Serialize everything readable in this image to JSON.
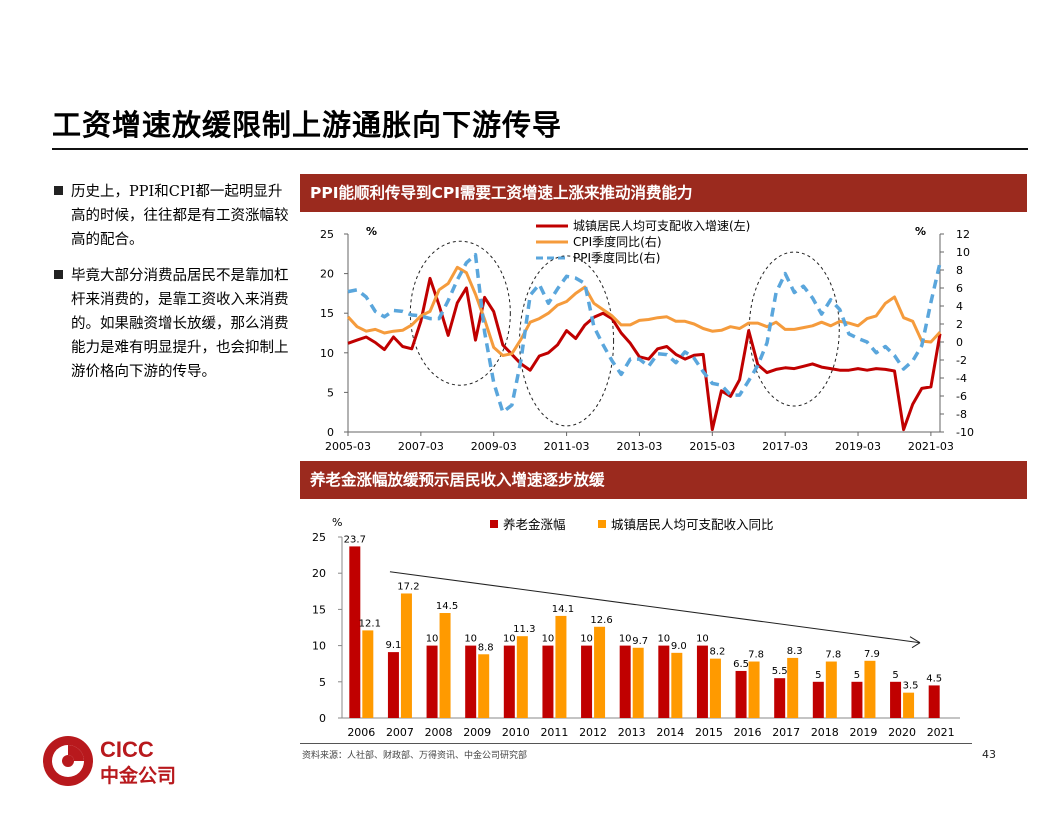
{
  "slide": {
    "title": "工资增速放缓限制上游通胀向下游传导",
    "bullets": [
      "历史上，PPI和CPI都一起明显升高的时候，往往都是有工资涨幅较高的配合。",
      "毕竟大部分消费品居民不是靠加杠杆来消费的，是靠工资收入来消费的。如果融资增长放缓，那么消费能力是难有明显提升，也会抑制上游价格向下游的传导。"
    ],
    "source": "资料来源：人社部、财政部、万得资讯、中金公司研究部",
    "page_number": "43",
    "logo_text_top": "CICC",
    "logo_text_bottom": "中金公司"
  },
  "colors": {
    "banner": "#9b2a1e",
    "income": "#c00000",
    "cpi": "#f59b3c",
    "ppi": "#5aa6dc",
    "pension_bar": "#c00000",
    "income_bar": "#ff9a00"
  },
  "chart_data": [
    {
      "type": "line",
      "title": "PPI能顺利传导到CPI需要工资增速上涨来推动消费能力",
      "left_unit": "%",
      "right_unit": "%",
      "ylim_left": [
        0,
        25
      ],
      "ylim_right": [
        -10,
        12
      ],
      "left_ticks": [
        "0",
        "5",
        "10",
        "15",
        "20",
        "25"
      ],
      "right_ticks": [
        "-10",
        "-8",
        "-6",
        "-4",
        "-2",
        "0",
        "2",
        "4",
        "6",
        "8",
        "10",
        "12"
      ],
      "x_ticks": [
        "2005-03",
        "2007-03",
        "2009-03",
        "2011-03",
        "2013-03",
        "2015-03",
        "2017-03",
        "2019-03",
        "2021-03"
      ],
      "x_start": "2005-03",
      "x_end": "2021-06",
      "grid": false,
      "legend_position": "top-center",
      "annotations": [
        "dashed ellipse 2007-2009",
        "dashed ellipse 2009-2012",
        "dashed ellipse 2016-2018"
      ],
      "series": [
        {
          "name": "城镇居民人均可支配收入增速(左)",
          "axis": "left",
          "style": "solid",
          "points": [
            [
              "2005-03",
              11.2
            ],
            [
              "2005-06",
              11.6
            ],
            [
              "2005-09",
              12.0
            ],
            [
              "2005-12",
              11.3
            ],
            [
              "2006-03",
              10.4
            ],
            [
              "2006-06",
              12.0
            ],
            [
              "2006-09",
              10.8
            ],
            [
              "2006-12",
              10.5
            ],
            [
              "2007-03",
              14.0
            ],
            [
              "2007-06",
              19.4
            ],
            [
              "2007-09",
              16.0
            ],
            [
              "2007-12",
              12.2
            ],
            [
              "2008-03",
              16.3
            ],
            [
              "2008-06",
              18.2
            ],
            [
              "2008-09",
              11.6
            ],
            [
              "2008-12",
              17.0
            ],
            [
              "2009-03",
              15.2
            ],
            [
              "2009-06",
              11.0
            ],
            [
              "2009-09",
              9.8
            ],
            [
              "2009-12",
              8.6
            ],
            [
              "2010-03",
              7.8
            ],
            [
              "2010-06",
              9.6
            ],
            [
              "2010-09",
              10.0
            ],
            [
              "2010-12",
              11.0
            ],
            [
              "2011-03",
              12.8
            ],
            [
              "2011-06",
              11.8
            ],
            [
              "2011-09",
              13.5
            ],
            [
              "2011-12",
              14.5
            ],
            [
              "2012-03",
              15.0
            ],
            [
              "2012-06",
              14.3
            ],
            [
              "2012-09",
              12.5
            ],
            [
              "2012-12",
              11.2
            ],
            [
              "2013-03",
              9.5
            ],
            [
              "2013-06",
              9.2
            ],
            [
              "2013-09",
              10.5
            ],
            [
              "2013-12",
              10.8
            ],
            [
              "2014-03",
              9.8
            ],
            [
              "2014-06",
              9.2
            ],
            [
              "2014-09",
              9.7
            ],
            [
              "2014-12",
              9.8
            ],
            [
              "2015-03",
              0.3
            ],
            [
              "2015-06",
              5.2
            ],
            [
              "2015-09",
              4.5
            ],
            [
              "2015-12",
              6.6
            ],
            [
              "2016-03",
              12.8
            ],
            [
              "2016-06",
              8.5
            ],
            [
              "2016-09",
              7.5
            ],
            [
              "2016-12",
              7.9
            ],
            [
              "2017-03",
              8.1
            ],
            [
              "2017-06",
              8.0
            ],
            [
              "2017-09",
              8.3
            ],
            [
              "2017-12",
              8.6
            ],
            [
              "2018-03",
              8.2
            ],
            [
              "2018-06",
              8.0
            ],
            [
              "2018-09",
              7.8
            ],
            [
              "2018-12",
              7.8
            ],
            [
              "2019-03",
              8.0
            ],
            [
              "2019-06",
              7.8
            ],
            [
              "2019-09",
              8.0
            ],
            [
              "2019-12",
              7.9
            ],
            [
              "2020-03",
              7.7
            ],
            [
              "2020-06",
              0.3
            ],
            [
              "2020-09",
              3.5
            ],
            [
              "2020-12",
              5.5
            ],
            [
              "2021-03",
              5.7
            ],
            [
              "2021-06",
              12.4
            ]
          ]
        },
        {
          "name": "CPI季度同比(右)",
          "axis": "right",
          "style": "solid",
          "points": [
            [
              "2005-03",
              2.8
            ],
            [
              "2005-06",
              1.7
            ],
            [
              "2005-09",
              1.2
            ],
            [
              "2005-12",
              1.4
            ],
            [
              "2006-03",
              1.0
            ],
            [
              "2006-06",
              1.2
            ],
            [
              "2006-09",
              1.3
            ],
            [
              "2006-12",
              1.9
            ],
            [
              "2007-03",
              2.9
            ],
            [
              "2007-06",
              3.4
            ],
            [
              "2007-09",
              5.8
            ],
            [
              "2007-12",
              6.5
            ],
            [
              "2008-03",
              8.3
            ],
            [
              "2008-06",
              7.7
            ],
            [
              "2008-09",
              5.3
            ],
            [
              "2008-12",
              2.5
            ],
            [
              "2009-03",
              -0.6
            ],
            [
              "2009-06",
              -1.5
            ],
            [
              "2009-09",
              -1.3
            ],
            [
              "2009-12",
              0.3
            ],
            [
              "2010-03",
              2.2
            ],
            [
              "2010-06",
              2.6
            ],
            [
              "2010-09",
              3.2
            ],
            [
              "2010-12",
              4.1
            ],
            [
              "2011-03",
              4.5
            ],
            [
              "2011-06",
              5.4
            ],
            [
              "2011-09",
              6.1
            ],
            [
              "2011-12",
              4.3
            ],
            [
              "2012-03",
              3.6
            ],
            [
              "2012-06",
              2.9
            ],
            [
              "2012-09",
              1.9
            ],
            [
              "2012-12",
              1.9
            ],
            [
              "2013-03",
              2.4
            ],
            [
              "2013-06",
              2.5
            ],
            [
              "2013-09",
              2.7
            ],
            [
              "2013-12",
              2.8
            ],
            [
              "2014-03",
              2.3
            ],
            [
              "2014-06",
              2.3
            ],
            [
              "2014-09",
              2.0
            ],
            [
              "2014-12",
              1.5
            ],
            [
              "2015-03",
              1.2
            ],
            [
              "2015-06",
              1.3
            ],
            [
              "2015-09",
              1.7
            ],
            [
              "2015-12",
              1.5
            ],
            [
              "2016-03",
              2.1
            ],
            [
              "2016-06",
              2.1
            ],
            [
              "2016-09",
              1.7
            ],
            [
              "2016-12",
              2.2
            ],
            [
              "2017-03",
              1.4
            ],
            [
              "2017-06",
              1.4
            ],
            [
              "2017-09",
              1.6
            ],
            [
              "2017-12",
              1.8
            ],
            [
              "2018-03",
              2.2
            ],
            [
              "2018-06",
              1.8
            ],
            [
              "2018-09",
              2.3
            ],
            [
              "2018-12",
              2.1
            ],
            [
              "2019-03",
              1.8
            ],
            [
              "2019-06",
              2.6
            ],
            [
              "2019-09",
              2.9
            ],
            [
              "2019-12",
              4.3
            ],
            [
              "2020-03",
              5.0
            ],
            [
              "2020-06",
              2.7
            ],
            [
              "2020-09",
              2.3
            ],
            [
              "2020-12",
              0.1
            ],
            [
              "2021-03",
              0.0
            ],
            [
              "2021-06",
              1.1
            ]
          ]
        },
        {
          "name": "PPI季度同比(右)",
          "axis": "right",
          "style": "dashed",
          "points": [
            [
              "2005-03",
              5.6
            ],
            [
              "2005-06",
              5.8
            ],
            [
              "2005-09",
              5.0
            ],
            [
              "2005-12",
              3.4
            ],
            [
              "2006-03",
              2.8
            ],
            [
              "2006-06",
              3.5
            ],
            [
              "2006-09",
              3.4
            ],
            [
              "2006-12",
              3.0
            ],
            [
              "2007-03",
              2.9
            ],
            [
              "2007-06",
              2.6
            ],
            [
              "2007-09",
              2.6
            ],
            [
              "2007-12",
              4.6
            ],
            [
              "2008-03",
              6.9
            ],
            [
              "2008-06",
              8.8
            ],
            [
              "2008-09",
              9.7
            ],
            [
              "2008-12",
              1.1
            ],
            [
              "2009-03",
              -4.5
            ],
            [
              "2009-06",
              -7.8
            ],
            [
              "2009-09",
              -7.0
            ],
            [
              "2009-12",
              -2.0
            ],
            [
              "2010-03",
              5.2
            ],
            [
              "2010-06",
              6.4
            ],
            [
              "2010-09",
              4.3
            ],
            [
              "2010-12",
              5.9
            ],
            [
              "2011-03",
              7.3
            ],
            [
              "2011-06",
              7.1
            ],
            [
              "2011-09",
              6.5
            ],
            [
              "2011-12",
              1.7
            ],
            [
              "2012-03",
              -0.3
            ],
            [
              "2012-06",
              -2.1
            ],
            [
              "2012-09",
              -3.6
            ],
            [
              "2012-12",
              -1.9
            ],
            [
              "2013-03",
              -1.9
            ],
            [
              "2013-06",
              -2.7
            ],
            [
              "2013-09",
              -1.3
            ],
            [
              "2013-12",
              -1.4
            ],
            [
              "2014-03",
              -2.3
            ],
            [
              "2014-06",
              -1.1
            ],
            [
              "2014-09",
              -1.8
            ],
            [
              "2014-12",
              -3.3
            ],
            [
              "2015-03",
              -4.6
            ],
            [
              "2015-06",
              -4.8
            ],
            [
              "2015-09",
              -5.9
            ],
            [
              "2015-12",
              -5.9
            ],
            [
              "2016-03",
              -4.3
            ],
            [
              "2016-06",
              -2.6
            ],
            [
              "2016-09",
              -0.1
            ],
            [
              "2016-12",
              5.5
            ],
            [
              "2017-03",
              7.6
            ],
            [
              "2017-06",
              5.5
            ],
            [
              "2017-09",
              6.2
            ],
            [
              "2017-12",
              4.9
            ],
            [
              "2018-03",
              3.1
            ],
            [
              "2018-06",
              4.7
            ],
            [
              "2018-09",
              3.6
            ],
            [
              "2018-12",
              0.9
            ],
            [
              "2019-03",
              0.4
            ],
            [
              "2019-06",
              0.0
            ],
            [
              "2019-09",
              -1.2
            ],
            [
              "2019-12",
              -0.5
            ],
            [
              "2020-03",
              -1.5
            ],
            [
              "2020-06",
              -3.0
            ],
            [
              "2020-09",
              -2.1
            ],
            [
              "2020-12",
              -0.4
            ],
            [
              "2021-03",
              4.4
            ],
            [
              "2021-06",
              8.8
            ]
          ]
        }
      ]
    },
    {
      "type": "bar",
      "title": "养老金涨幅放缓预示居民收入增速逐步放缓",
      "unit": "%",
      "ylim": [
        0,
        25
      ],
      "y_ticks": [
        "0",
        "5",
        "10",
        "15",
        "20",
        "25"
      ],
      "legend_position": "top-center",
      "categories": [
        "2006",
        "2007",
        "2008",
        "2009",
        "2010",
        "2011",
        "2012",
        "2013",
        "2014",
        "2015",
        "2016",
        "2017",
        "2018",
        "2019",
        "2020",
        "2021"
      ],
      "series": [
        {
          "name": "养老金涨幅",
          "values": [
            23.7,
            9.1,
            10,
            10,
            10,
            10,
            10,
            10,
            10,
            10,
            6.5,
            5.5,
            5,
            5,
            5,
            4.5
          ],
          "labels": [
            "23.7",
            "9.1",
            "10",
            "10",
            "10",
            "10",
            "10",
            "10",
            "10",
            "10",
            "6.5",
            "5.5",
            "5",
            "5",
            "5",
            "4.5"
          ]
        },
        {
          "name": "城镇居民人均可支配收入同比",
          "values": [
            12.1,
            17.2,
            14.5,
            8.8,
            11.3,
            14.1,
            12.6,
            9.7,
            9.0,
            8.2,
            7.8,
            8.3,
            7.8,
            7.9,
            3.5,
            null
          ],
          "labels": [
            "12.1",
            "17.2",
            "14.5",
            "8.8",
            "11.3",
            "14.1",
            "12.6",
            "9.7",
            "9.0",
            "8.2",
            "7.8",
            "8.3",
            "7.8",
            "7.9",
            "3.5",
            ""
          ]
        }
      ],
      "annotations": [
        "downward trend arrow from 2007 to 2021"
      ]
    }
  ]
}
